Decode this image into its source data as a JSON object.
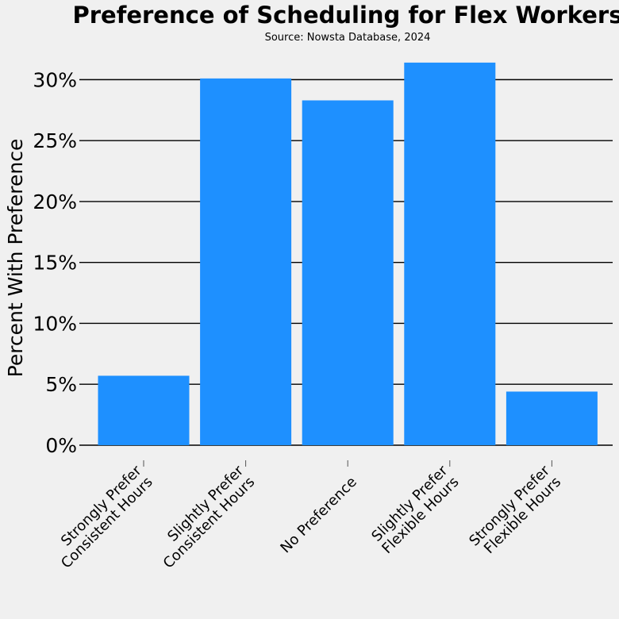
{
  "chart_data": {
    "type": "bar",
    "title": "Preference of Scheduling for Flex Workers",
    "subtitle": "Source: Nowsta Database, 2024",
    "xlabel": "",
    "ylabel": "Percent With Preference",
    "categories": [
      [
        "Strongly Prefer",
        "Consistent Hours"
      ],
      [
        "Slightly Prefer",
        "Consistent Hours"
      ],
      [
        "No Preference"
      ],
      [
        "Slightly Prefer",
        "Flexible Hours"
      ],
      [
        "Strongly Prefer",
        "Flexible Hours"
      ]
    ],
    "values": [
      5.7,
      30.1,
      28.3,
      31.4,
      4.4
    ],
    "ylim": [
      0,
      32.5
    ],
    "yticks": [
      0,
      5,
      10,
      15,
      20,
      25,
      30
    ],
    "ytick_labels": [
      "0%",
      "5%",
      "10%",
      "15%",
      "20%",
      "25%",
      "30%"
    ],
    "bar_color": "#1e90ff",
    "grid": true,
    "legend": false
  }
}
